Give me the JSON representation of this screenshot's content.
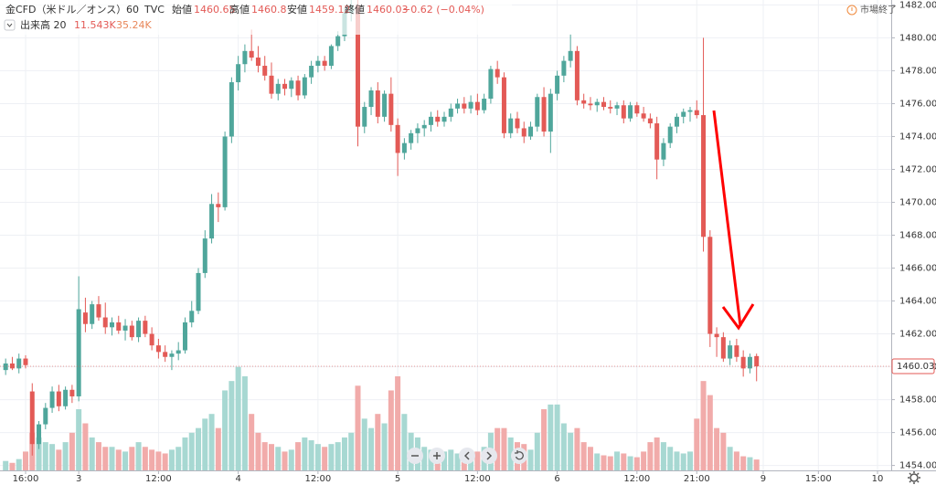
{
  "chart_data": {
    "type": "candlestick",
    "title": "金CFD（米ドル／オンス）",
    "interval": "60",
    "source": "TVC",
    "ohlc_labels": [
      "始値",
      "高値",
      "安値",
      "終値"
    ],
    "change_label": "−0.62 (−0.04%)",
    "volume_label": "出来高 20",
    "volume_last_label": "11.543K",
    "volume_ma_label": "35.24K",
    "status": "市場終了",
    "up_color": "#4fa69b",
    "down_color": "#e35a56",
    "volume_up_color": "#a7d8d2",
    "volume_down_color": "#f1abaa",
    "grid": true,
    "x": [
      -3,
      -2,
      -1,
      0,
      1,
      2,
      3,
      4,
      5,
      6,
      7,
      8,
      9,
      10,
      11,
      12,
      13,
      14,
      15,
      16,
      17,
      18,
      19,
      20,
      21,
      22,
      23,
      24,
      25,
      26,
      27,
      28,
      29,
      30,
      31,
      32,
      33,
      34,
      35,
      36,
      37,
      38,
      39,
      40,
      41,
      42,
      43,
      44,
      45,
      46,
      47,
      48,
      49,
      50,
      51,
      52,
      53,
      54,
      55,
      56,
      57,
      58,
      59,
      60,
      61,
      62,
      63,
      64,
      65,
      66,
      67,
      68,
      69,
      70,
      71,
      72,
      73,
      74,
      75,
      76,
      77,
      78,
      79,
      80,
      81,
      82,
      83,
      84,
      85,
      86,
      87,
      88,
      89,
      90,
      91,
      92,
      93,
      94,
      95,
      96,
      97,
      98,
      99,
      100,
      101,
      102,
      103,
      104,
      105,
      106,
      107,
      108,
      109,
      110
    ],
    "open": [
      1459.8,
      1460.2,
      1459.9,
      1460.5,
      1458.5,
      1455.3,
      1456.5,
      1457.5,
      1458.5,
      1457.6,
      1458.6,
      1458.2,
      1463.3,
      1462.6,
      1463.8,
      1463.0,
      1462.4,
      1462.7,
      1462.2,
      1462.5,
      1461.8,
      1462.8,
      1462.0,
      1461.3,
      1460.9,
      1460.6,
      1460.8,
      1461.0,
      1462.7,
      1463.4,
      1465.7,
      1467.8,
      1469.9,
      1469.7,
      1474.0,
      1477.3,
      1478.4,
      1479.2,
      1478.8,
      1478.3,
      1477.7,
      1476.6,
      1477.2,
      1476.9,
      1477.4,
      1476.5,
      1477.6,
      1478.3,
      1478.6,
      1478.3,
      1479.5,
      1480.1,
      1481.5,
      1482.0,
      1474.6,
      1475.8,
      1476.8,
      1475.2,
      1476.6,
      1474.7,
      1473.0,
      1473.6,
      1474.2,
      1474.5,
      1474.7,
      1475.2,
      1474.9,
      1475.2,
      1475.7,
      1476.0,
      1475.7,
      1476.1,
      1475.6,
      1476.3,
      1478.1,
      1477.6,
      1474.2,
      1475.1,
      1474.5,
      1474.0,
      1474.6,
      1476.4,
      1474.3,
      1476.6,
      1477.7,
      1478.6,
      1479.2,
      1476.2,
      1476.0,
      1475.9,
      1476.1,
      1475.8,
      1475.7,
      1475.9,
      1475.1,
      1475.9,
      1475.4,
      1475.1,
      1474.8,
      1472.6,
      1473.6,
      1474.6,
      1475.2,
      1475.5,
      1475.6,
      1475.3,
      1467.9,
      1462.0,
      1461.8,
      1460.5,
      1461.3,
      1460.6,
      1459.9,
      1460.65
    ],
    "high": [
      1460.5,
      1460.6,
      1460.8,
      1460.7,
      1459.0,
      1456.7,
      1457.8,
      1458.8,
      1458.9,
      1458.8,
      1458.9,
      1465.5,
      1464.2,
      1464.0,
      1464.3,
      1463.9,
      1463.0,
      1463.1,
      1462.9,
      1462.8,
      1463.0,
      1463.1,
      1462.4,
      1461.7,
      1461.3,
      1461.0,
      1461.5,
      1463.0,
      1464.0,
      1466.0,
      1468.3,
      1470.5,
      1470.6,
      1474.3,
      1477.6,
      1478.9,
      1479.6,
      1480.5,
      1479.5,
      1478.9,
      1478.5,
      1477.5,
      1477.5,
      1477.6,
      1477.7,
      1477.8,
      1478.6,
      1478.9,
      1478.9,
      1479.6,
      1480.4,
      1481.8,
      1482.3,
      1482.3,
      1476.1,
      1477.0,
      1477.3,
      1476.8,
      1477.6,
      1475.1,
      1473.9,
      1474.4,
      1474.8,
      1475.0,
      1475.5,
      1475.6,
      1475.5,
      1476.0,
      1476.3,
      1476.4,
      1476.5,
      1476.6,
      1476.6,
      1478.3,
      1478.6,
      1477.9,
      1475.4,
      1475.5,
      1474.9,
      1474.9,
      1476.6,
      1477.0,
      1476.9,
      1478.0,
      1478.9,
      1480.2,
      1479.5,
      1476.6,
      1476.4,
      1476.3,
      1476.4,
      1476.2,
      1476.1,
      1476.2,
      1476.1,
      1476.1,
      1475.8,
      1475.4,
      1475.2,
      1473.9,
      1474.8,
      1475.4,
      1475.7,
      1475.8,
      1476.2,
      1480.0,
      1468.3,
      1462.4,
      1462.1,
      1461.6,
      1461.7,
      1461.0,
      1460.8,
      1460.8
    ],
    "low": [
      1459.5,
      1459.8,
      1459.6,
      1459.9,
      1454.6,
      1455.0,
      1456.2,
      1457.2,
      1457.3,
      1457.4,
      1457.8,
      1457.9,
      1462.1,
      1462.3,
      1462.8,
      1462.0,
      1461.9,
      1462.0,
      1461.6,
      1461.6,
      1461.5,
      1461.8,
      1461.0,
      1460.5,
      1460.3,
      1459.8,
      1460.4,
      1460.8,
      1462.4,
      1463.2,
      1465.4,
      1467.5,
      1468.8,
      1469.5,
      1473.6,
      1476.8,
      1477.9,
      1478.6,
      1477.9,
      1477.4,
      1476.3,
      1476.2,
      1476.5,
      1476.4,
      1476.2,
      1476.3,
      1477.2,
      1477.9,
      1478.0,
      1478.1,
      1479.2,
      1479.8,
      1481.0,
      1473.4,
      1474.2,
      1475.3,
      1474.8,
      1474.9,
      1474.3,
      1471.6,
      1472.6,
      1473.2,
      1473.6,
      1474.0,
      1474.3,
      1474.6,
      1474.6,
      1474.9,
      1475.4,
      1475.4,
      1475.4,
      1475.3,
      1475.4,
      1476.0,
      1477.2,
      1473.9,
      1473.9,
      1474.2,
      1473.6,
      1473.8,
      1474.3,
      1474.0,
      1473.0,
      1476.2,
      1477.3,
      1478.2,
      1475.9,
      1475.7,
      1475.6,
      1475.5,
      1475.6,
      1475.4,
      1475.3,
      1474.8,
      1474.9,
      1475.2,
      1474.9,
      1474.5,
      1471.4,
      1472.2,
      1473.3,
      1474.2,
      1474.8,
      1474.9,
      1475.1,
      1467.0,
      1461.2,
      1460.6,
      1460.3,
      1460.1,
      1460.3,
      1459.4,
      1459.6,
      1459.12
    ],
    "close": [
      1460.2,
      1459.9,
      1460.5,
      1460.1,
      1455.3,
      1456.5,
      1457.5,
      1458.5,
      1457.6,
      1458.6,
      1458.2,
      1463.5,
      1462.6,
      1463.8,
      1463.0,
      1462.4,
      1462.7,
      1462.2,
      1462.5,
      1461.8,
      1462.8,
      1462.0,
      1461.3,
      1460.9,
      1460.6,
      1460.8,
      1461.0,
      1462.7,
      1463.4,
      1465.7,
      1467.8,
      1469.9,
      1469.7,
      1474.0,
      1477.3,
      1478.4,
      1479.2,
      1478.8,
      1478.3,
      1477.7,
      1476.6,
      1477.2,
      1476.9,
      1477.4,
      1476.5,
      1477.6,
      1478.3,
      1478.6,
      1478.3,
      1479.5,
      1480.1,
      1481.5,
      1482.0,
      1474.6,
      1475.8,
      1476.8,
      1475.2,
      1476.6,
      1474.7,
      1473.0,
      1473.6,
      1474.2,
      1474.5,
      1474.7,
      1475.2,
      1474.9,
      1475.2,
      1475.7,
      1476.0,
      1475.7,
      1476.1,
      1475.6,
      1476.3,
      1478.1,
      1477.6,
      1474.2,
      1475.1,
      1474.5,
      1474.0,
      1474.6,
      1476.4,
      1474.3,
      1476.6,
      1477.7,
      1478.6,
      1479.2,
      1476.2,
      1476.0,
      1475.9,
      1476.1,
      1475.8,
      1475.7,
      1475.9,
      1475.1,
      1475.9,
      1475.4,
      1475.1,
      1474.8,
      1472.6,
      1473.6,
      1474.6,
      1475.2,
      1475.5,
      1475.6,
      1475.3,
      1467.9,
      1462.0,
      1461.8,
      1460.5,
      1461.3,
      1460.6,
      1459.9,
      1460.6,
      1460.03
    ],
    "volume": [
      10,
      8,
      12,
      20,
      40,
      35,
      30,
      28,
      22,
      30,
      40,
      65,
      50,
      35,
      30,
      25,
      25,
      22,
      20,
      25,
      30,
      25,
      22,
      20,
      18,
      22,
      25,
      35,
      40,
      45,
      55,
      60,
      45,
      85,
      95,
      110,
      100,
      60,
      40,
      30,
      28,
      25,
      20,
      22,
      30,
      35,
      32,
      28,
      25,
      28,
      30,
      35,
      40,
      90,
      55,
      45,
      60,
      50,
      85,
      100,
      60,
      40,
      35,
      25,
      22,
      18,
      20,
      22,
      18,
      15,
      18,
      20,
      25,
      40,
      45,
      45,
      35,
      30,
      28,
      22,
      40,
      65,
      70,
      70,
      50,
      40,
      45,
      30,
      25,
      18,
      16,
      15,
      20,
      18,
      15,
      14,
      20,
      30,
      35,
      30,
      25,
      20,
      18,
      20,
      55,
      95,
      80,
      45,
      40,
      25,
      20,
      15,
      14,
      11.543
    ],
    "xlim": [
      -3.85,
      130.26
    ],
    "xticks": [
      {
        "value": 0,
        "label": "16:00"
      },
      {
        "value": 8,
        "label": "3"
      },
      {
        "value": 20,
        "label": "12:00"
      },
      {
        "value": 32,
        "label": "4"
      },
      {
        "value": 44,
        "label": "12:00"
      },
      {
        "value": 56,
        "label": "5"
      },
      {
        "value": 68,
        "label": "12:00"
      },
      {
        "value": 80,
        "label": "6"
      },
      {
        "value": 92,
        "label": "12:00"
      },
      {
        "value": 101,
        "label": "21:00"
      },
      {
        "value": 111,
        "label": "9"
      },
      {
        "value": 119.3,
        "label": "15:00"
      },
      {
        "value": 128.2,
        "label": "10"
      }
    ],
    "ylim": [
      1453.7,
      1482.3
    ],
    "yticks": [
      {
        "value": 1454,
        "label": "1454.00"
      },
      {
        "value": 1456,
        "label": "1456.00"
      },
      {
        "value": 1458,
        "label": "1458.00"
      },
      {
        "value": 1460,
        "label": "1460.00"
      },
      {
        "value": 1462,
        "label": "1462.00"
      },
      {
        "value": 1464,
        "label": "1464.00"
      },
      {
        "value": 1466,
        "label": "1466.00"
      },
      {
        "value": 1468,
        "label": "1468.00"
      },
      {
        "value": 1470,
        "label": "1470.00"
      },
      {
        "value": 1472,
        "label": "1472.00"
      },
      {
        "value": 1474,
        "label": "1474.00"
      },
      {
        "value": 1476,
        "label": "1476.00"
      },
      {
        "value": 1478,
        "label": "1478.00"
      },
      {
        "value": 1480,
        "label": "1480.00"
      },
      {
        "value": 1482,
        "label": "1482.00"
      }
    ],
    "volume_lim": [
      0,
      500
    ]
  }
}
